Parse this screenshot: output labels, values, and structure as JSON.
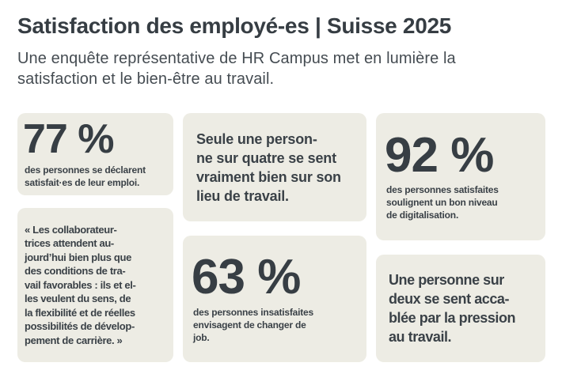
{
  "page": {
    "title": "Satisfaction des employé-es | Suisse 2025",
    "subtitle": "Une enquête représentative de HR Campus met en lumière la\nsatisfaction et le bien-être au travail."
  },
  "colors": {
    "background": "#FFFFFF",
    "card_background": "#EDECE4",
    "text": "#3A4147"
  },
  "cards": [
    {
      "id": "stat-77",
      "type": "stat",
      "value": "77 %",
      "caption": "des personnes se déclarent\nsatisfait·es de leur emploi."
    },
    {
      "id": "statement-quarter",
      "type": "statement",
      "text": "Seule une person-\nne sur quatre se sent\nvraiment bien sur son\nlieu de travail."
    },
    {
      "id": "stat-92",
      "type": "stat",
      "value": "92 %",
      "caption": "des personnes satisfaites\nsoulignent un bon niveau\nde digitalisation."
    },
    {
      "id": "quote-collaborateurs",
      "type": "quote",
      "text": "« Les collaborateur-\ntrices attendent au-\njourd’hui bien plus que\ndes conditions de tra-\nvail favorables : ils et el-\nles veulent du sens, de\nla flexibilité et de réelles\npossibilités de dévelop-\npement de carrière. »"
    },
    {
      "id": "stat-63",
      "type": "stat",
      "value": "63 %",
      "caption": "des personnes insatisfaites\nenvisagent de changer de\njob."
    },
    {
      "id": "statement-pressure",
      "type": "statement",
      "text": "Une personne sur\ndeux se sent acca-\nblée par la pression\nau travail."
    }
  ]
}
